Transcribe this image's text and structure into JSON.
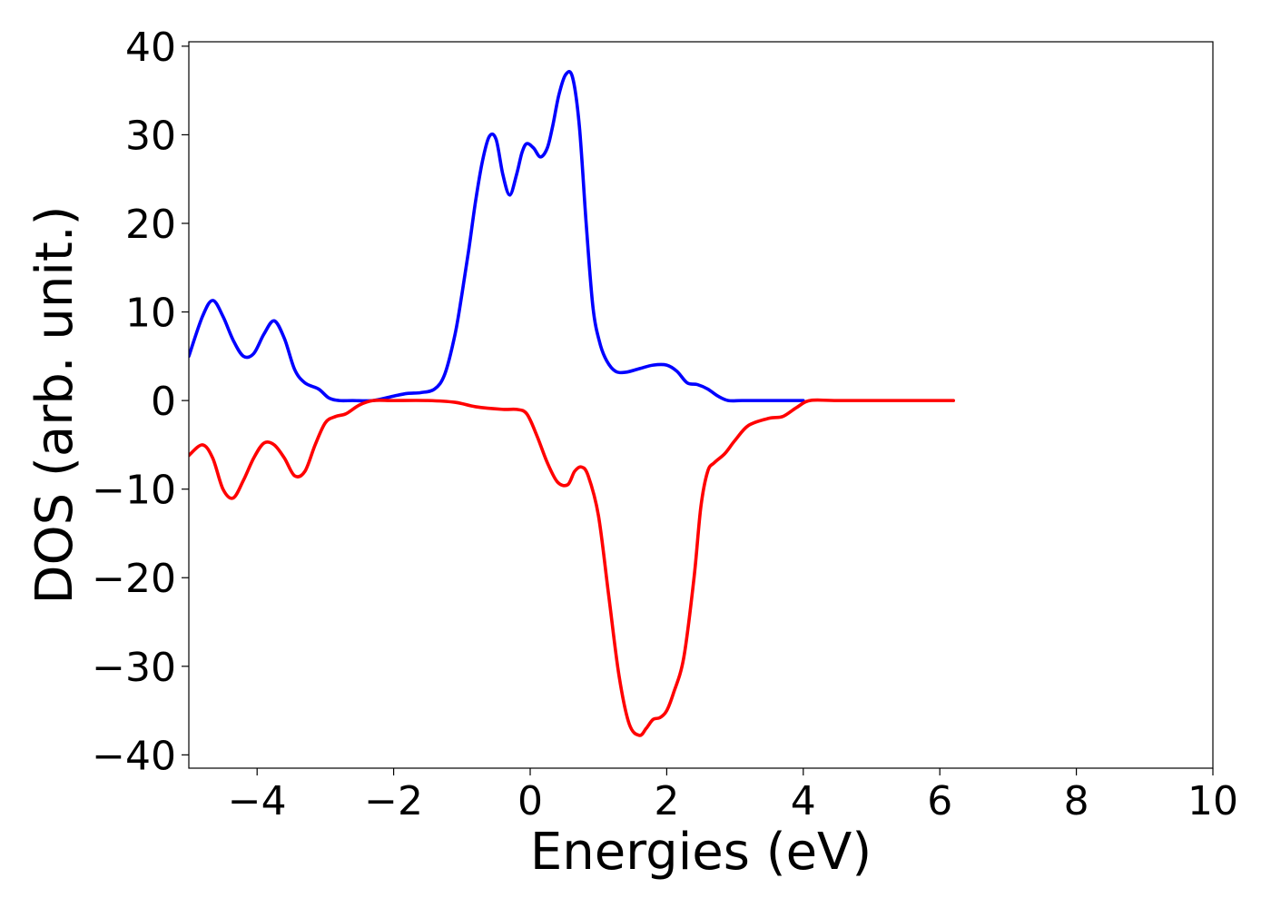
{
  "chart_data": {
    "type": "line",
    "title": "",
    "xlabel": "Energies (eV)",
    "ylabel": "DOS (arb. unit.)",
    "xlim": [
      -5,
      10
    ],
    "ylim": [
      -41.5,
      40.5
    ],
    "xticks": [
      -4,
      -2,
      0,
      2,
      4,
      6,
      8,
      10
    ],
    "xtick_labels": [
      "−4",
      "−2",
      "0",
      "2",
      "4",
      "6",
      "8",
      "10"
    ],
    "yticks": [
      40,
      30,
      20,
      10,
      0,
      -10,
      -20,
      -30,
      -40
    ],
    "ytick_labels": [
      "40",
      "30",
      "20",
      "10",
      "0",
      "−10",
      "−20",
      "−30",
      "−40"
    ],
    "grid": false,
    "legend": "none",
    "series": [
      {
        "color": "#0000ff",
        "x": [
          -5.0,
          -4.8,
          -4.65,
          -4.5,
          -4.35,
          -4.2,
          -4.05,
          -3.9,
          -3.75,
          -3.6,
          -3.45,
          -3.3,
          -3.1,
          -2.95,
          -2.8,
          -2.6,
          -2.3,
          -2.0,
          -1.8,
          -1.6,
          -1.4,
          -1.25,
          -1.1,
          -1.0,
          -0.9,
          -0.8,
          -0.7,
          -0.6,
          -0.5,
          -0.4,
          -0.3,
          -0.2,
          -0.12,
          -0.05,
          0.05,
          0.15,
          0.25,
          0.33,
          0.42,
          0.52,
          0.62,
          0.72,
          0.82,
          0.92,
          1.02,
          1.12,
          1.25,
          1.4,
          1.6,
          1.8,
          2.0,
          2.15,
          2.3,
          2.45,
          2.6,
          2.75,
          2.9,
          3.1,
          3.4,
          4.0
        ],
        "y": [
          5.0,
          9.5,
          11.3,
          9.5,
          6.8,
          5.0,
          5.3,
          7.5,
          9.0,
          7.0,
          3.5,
          2.0,
          1.3,
          0.3,
          0.0,
          0.0,
          0.0,
          0.5,
          0.8,
          0.9,
          1.3,
          3.0,
          7.5,
          12.0,
          17.0,
          22.5,
          27.0,
          29.8,
          29.5,
          25.5,
          23.2,
          25.5,
          28.0,
          29.0,
          28.5,
          27.5,
          28.5,
          31.0,
          34.5,
          36.8,
          36.5,
          31.0,
          20.0,
          10.5,
          6.5,
          4.5,
          3.3,
          3.2,
          3.6,
          4.0,
          4.0,
          3.3,
          2.0,
          1.8,
          1.3,
          0.5,
          0.0,
          0.0,
          0.0,
          0.0
        ]
      },
      {
        "color": "#ff0000",
        "x": [
          -5.0,
          -4.8,
          -4.65,
          -4.5,
          -4.35,
          -4.2,
          -4.05,
          -3.9,
          -3.75,
          -3.6,
          -3.45,
          -3.3,
          -3.15,
          -3.0,
          -2.85,
          -2.7,
          -2.5,
          -2.3,
          -2.0,
          -1.5,
          -1.1,
          -0.8,
          -0.4,
          -0.2,
          -0.05,
          0.1,
          0.25,
          0.4,
          0.55,
          0.65,
          0.75,
          0.85,
          1.0,
          1.15,
          1.3,
          1.45,
          1.6,
          1.7,
          1.8,
          1.9,
          2.0,
          2.1,
          2.25,
          2.4,
          2.5,
          2.6,
          2.7,
          2.85,
          3.0,
          3.2,
          3.5,
          3.7,
          3.9,
          4.1,
          4.5,
          5.5,
          6.2
        ],
        "y": [
          -6.2,
          -5.0,
          -6.5,
          -10.0,
          -11.0,
          -9.0,
          -6.5,
          -4.8,
          -5.0,
          -6.5,
          -8.5,
          -8.0,
          -5.0,
          -2.5,
          -1.8,
          -1.5,
          -0.5,
          0.0,
          0.0,
          0.0,
          -0.2,
          -0.7,
          -1.0,
          -1.0,
          -1.5,
          -4.0,
          -7.0,
          -9.2,
          -9.5,
          -8.0,
          -7.5,
          -8.5,
          -13.0,
          -22.0,
          -31.0,
          -36.5,
          -37.8,
          -37.0,
          -36.0,
          -35.8,
          -35.0,
          -33.0,
          -29.0,
          -20.0,
          -12.0,
          -8.0,
          -7.0,
          -6.0,
          -4.5,
          -2.8,
          -2.0,
          -1.8,
          -0.8,
          0.0,
          0.0,
          0.0,
          0.0
        ]
      }
    ]
  }
}
